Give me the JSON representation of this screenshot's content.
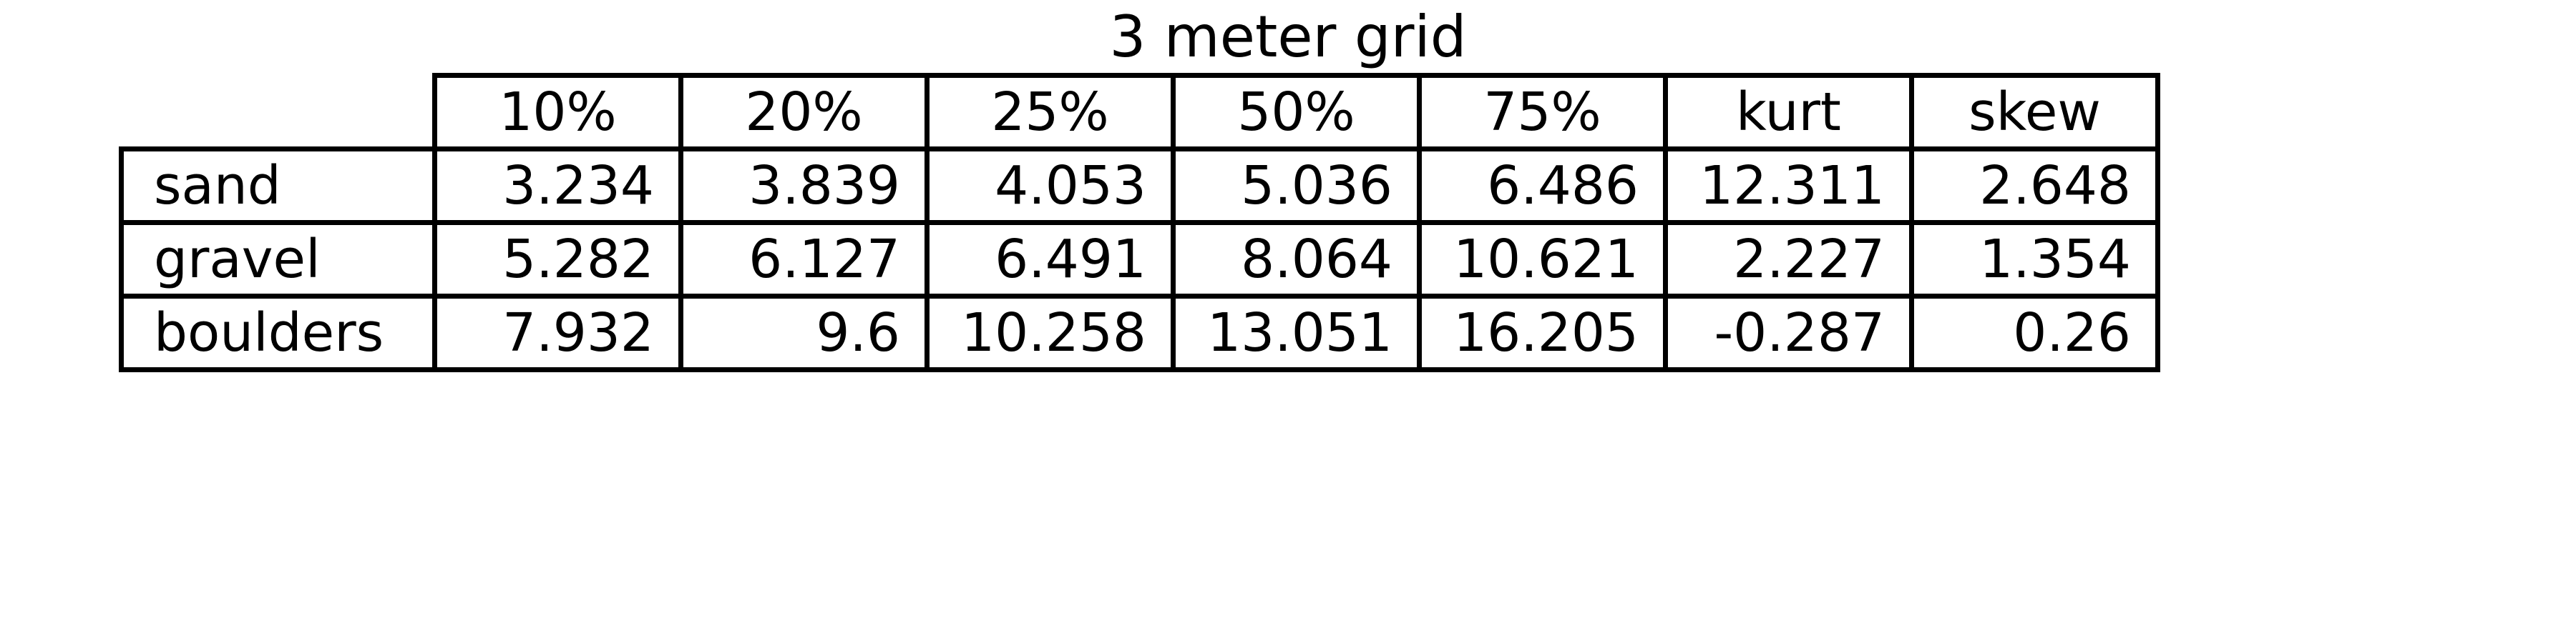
{
  "chart_data": {
    "type": "table",
    "title": "3 meter grid",
    "columns": [
      "10%",
      "20%",
      "25%",
      "50%",
      "75%",
      "kurt",
      "skew"
    ],
    "rows": [
      {
        "label": "sand",
        "values": [
          "3.234",
          "3.839",
          "4.053",
          "5.036",
          "6.486",
          "12.311",
          "2.648"
        ]
      },
      {
        "label": "gravel",
        "values": [
          "5.282",
          "6.127",
          "6.491",
          "8.064",
          "10.621",
          "2.227",
          "1.354"
        ]
      },
      {
        "label": "boulders",
        "values": [
          "7.932",
          "9.6",
          "10.258",
          "13.051",
          "16.205",
          "-0.287",
          "0.26"
        ]
      }
    ]
  }
}
